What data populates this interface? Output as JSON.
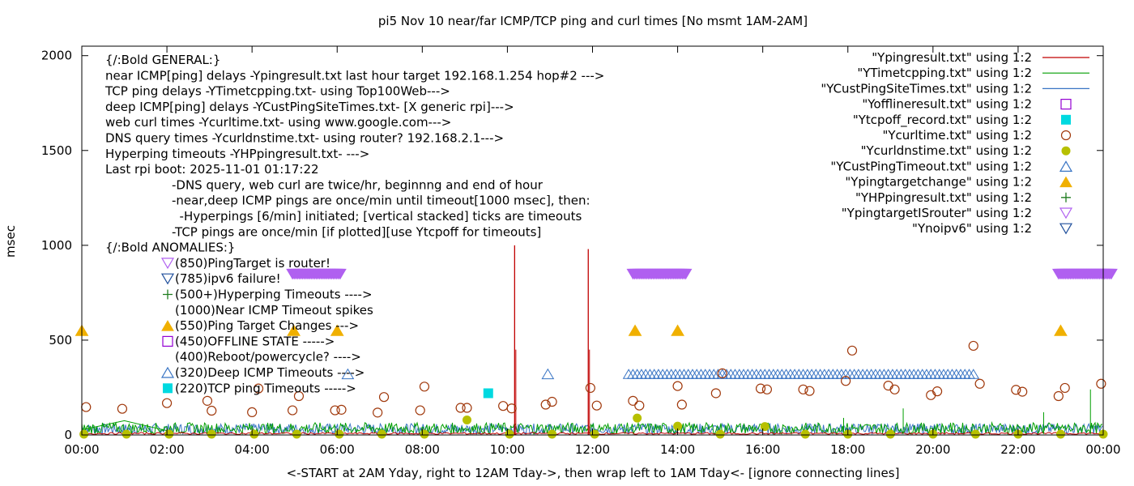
{
  "chart_data": {
    "type": "line",
    "title": "pi5 Nov 10  near/far ICMP/TCP ping and curl times [No msmt 1AM-2AM]",
    "xlabel": "<-START at 2AM Yday, right to 12AM Tday->, then wrap left to 1AM Tday<- [ignore connecting lines]",
    "ylabel": "msec",
    "xlim": [
      0,
      24
    ],
    "ylim": [
      0,
      2050
    ],
    "x_tick_labels": [
      "00:00",
      "02:00",
      "04:00",
      "06:00",
      "08:00",
      "10:00",
      "12:00",
      "14:00",
      "16:00",
      "18:00",
      "20:00",
      "22:00",
      "00:00"
    ],
    "x_tick_hours": [
      0,
      2,
      4,
      6,
      8,
      10,
      12,
      14,
      16,
      18,
      20,
      22,
      24
    ],
    "y_ticks": [
      0,
      500,
      1000,
      1500,
      2000
    ],
    "grid": false,
    "legend_position": "top-right",
    "legend": [
      {
        "label": "\"Ypingresult.txt\" using 1:2",
        "color": "#c00000",
        "marker": "line"
      },
      {
        "label": "\"YTimetcpping.txt\" using 1:2",
        "color": "#009e00",
        "marker": "line"
      },
      {
        "label": "\"YCustPingSiteTimes.txt\" using 1:2",
        "color": "#3874c4",
        "marker": "line"
      },
      {
        "label": "\"Yofflineresult.txt\" using 1:2",
        "color": "#9400d3",
        "marker": "square-open"
      },
      {
        "label": "\"Ytcpoff_record.txt\" using 1:2",
        "color": "#00d9e0",
        "marker": "square-filled"
      },
      {
        "label": "\"Ycurltime.txt\" using 1:2",
        "color": "#a0380b",
        "marker": "circle-open"
      },
      {
        "label": "\"Ycurldnstime.txt\" using 1:2",
        "color": "#b7c000",
        "marker": "circle-filled"
      },
      {
        "label": "\"YCustPingTimeout.txt\" using 1:2",
        "color": "#3874c4",
        "marker": "triangle-up-open"
      },
      {
        "label": "\"Ypingtargetchange\" using 1:2",
        "color": "#f0b000",
        "marker": "triangle-up-filled"
      },
      {
        "label": "\"YHPpingresult.txt\" using 1:2",
        "color": "#1f7d1f",
        "marker": "plus"
      },
      {
        "label": "\"YpingtargetISrouter\" using 1:2",
        "color": "#b060f0",
        "marker": "triangle-down-open"
      },
      {
        "label": "\"Ynoipv6\" using 1:2",
        "color": "#1f4f9c",
        "marker": "triangle-down-open"
      }
    ],
    "annotations": {
      "general_title": "{/:Bold GENERAL:}",
      "general_lines": [
        "near ICMP[ping] delays -Ypingresult.txt last hour target 192.168.1.254 hop#2 --->",
        "TCP ping delays -YTimetcpping.txt- using Top100Web--->",
        "deep ICMP[ping] delays -YCustPingSiteTimes.txt- [X generic rpi]--->",
        "web curl times -Ycurltime.txt- using www.google.com--->",
        "DNS query times -Ycurldnstime.txt- using router? 192.168.2.1--->",
        "Hyperping timeouts -YHPpingresult.txt- --->",
        "Last rpi boot: 2025-11-01 01:17:22"
      ],
      "note_lines": [
        "-DNS query, web curl are twice/hr, beginnng and end of hour",
        "-near,deep ICMP pings are once/min until timeout[1000 msec], then:",
        "  -Hyperpings [6/min] initiated; [vertical stacked] ticks are timeouts",
        "-TCP pings are once/min [if plotted][use Ytcpoff for timeouts]"
      ],
      "anomalies_title": "{/:Bold ANOMALIES:}",
      "anomaly_lines": [
        "(850)PingTarget is router!",
        "(785)ipv6 failure!",
        "(500+)Hyperping Timeouts ---->",
        "(1000)Near ICMP Timeout spikes",
        "(550)Ping Target Changes --->",
        "(450)OFFLINE STATE ----->",
        "(400)Reboot/powercycle? ---->",
        "(320)Deep ICMP Timeouts ---->",
        "(220)TCP ping Timeouts ----->"
      ]
    },
    "series_data": {
      "near_icmp_spikes": [
        [
          10.17,
          1000
        ],
        [
          11.9,
          980
        ]
      ],
      "router_target_runs": [
        [
          4.95,
          6.1,
          850
        ],
        [
          12.95,
          14.2,
          850
        ],
        [
          22.95,
          24.2,
          850
        ]
      ],
      "ping_target_changes": [
        [
          0.0,
          550
        ],
        [
          4.98,
          550
        ],
        [
          6.0,
          550
        ],
        [
          13.0,
          550
        ],
        [
          14.0,
          550
        ],
        [
          23.0,
          550
        ]
      ],
      "tcp_ping_timeouts": [
        [
          9.55,
          220
        ]
      ],
      "deep_icmp_timeout_single": [
        [
          6.25,
          320
        ],
        [
          10.95,
          320
        ]
      ],
      "deep_icmp_timeout_run": [
        12.85,
        21.0,
        320
      ],
      "curl_times": [
        [
          0.1,
          147
        ],
        [
          0.95,
          138
        ],
        [
          2.0,
          168
        ],
        [
          2.95,
          180
        ],
        [
          3.05,
          128
        ],
        [
          4.0,
          120
        ],
        [
          4.15,
          245
        ],
        [
          4.95,
          130
        ],
        [
          5.1,
          205
        ],
        [
          5.95,
          130
        ],
        [
          6.1,
          133
        ],
        [
          6.95,
          118
        ],
        [
          7.1,
          200
        ],
        [
          7.95,
          130
        ],
        [
          8.05,
          255
        ],
        [
          8.9,
          143
        ],
        [
          9.05,
          143
        ],
        [
          9.9,
          153
        ],
        [
          10.1,
          140
        ],
        [
          10.9,
          160
        ],
        [
          11.05,
          175
        ],
        [
          11.95,
          248
        ],
        [
          12.1,
          155
        ],
        [
          12.95,
          180
        ],
        [
          13.1,
          155
        ],
        [
          14.0,
          258
        ],
        [
          14.1,
          160
        ],
        [
          14.9,
          220
        ],
        [
          15.05,
          325
        ],
        [
          15.95,
          245
        ],
        [
          16.1,
          240
        ],
        [
          16.95,
          240
        ],
        [
          17.1,
          232
        ],
        [
          17.95,
          285
        ],
        [
          18.1,
          445
        ],
        [
          18.95,
          260
        ],
        [
          19.1,
          240
        ],
        [
          19.95,
          210
        ],
        [
          20.1,
          230
        ],
        [
          20.95,
          470
        ],
        [
          21.1,
          270
        ],
        [
          21.95,
          238
        ],
        [
          22.1,
          228
        ],
        [
          22.95,
          205
        ],
        [
          23.1,
          248
        ],
        [
          23.95,
          270
        ]
      ],
      "dns_times": [
        [
          0.05,
          0
        ],
        [
          1.05,
          0
        ],
        [
          2.05,
          0
        ],
        [
          3.05,
          0
        ],
        [
          4.05,
          0
        ],
        [
          5.05,
          0
        ],
        [
          6.05,
          0
        ],
        [
          7.05,
          0
        ],
        [
          8.05,
          0
        ],
        [
          9.05,
          75
        ],
        [
          10.05,
          0
        ],
        [
          11.05,
          0
        ],
        [
          12.05,
          0
        ],
        [
          13.05,
          85
        ],
        [
          14.0,
          42
        ],
        [
          15.0,
          0
        ],
        [
          16.05,
          40
        ],
        [
          17.0,
          0
        ],
        [
          18.0,
          0
        ],
        [
          19.0,
          0
        ],
        [
          20.0,
          0
        ],
        [
          21.0,
          0
        ],
        [
          22.0,
          0
        ],
        [
          23.0,
          0
        ],
        [
          24.0,
          0
        ]
      ]
    }
  }
}
